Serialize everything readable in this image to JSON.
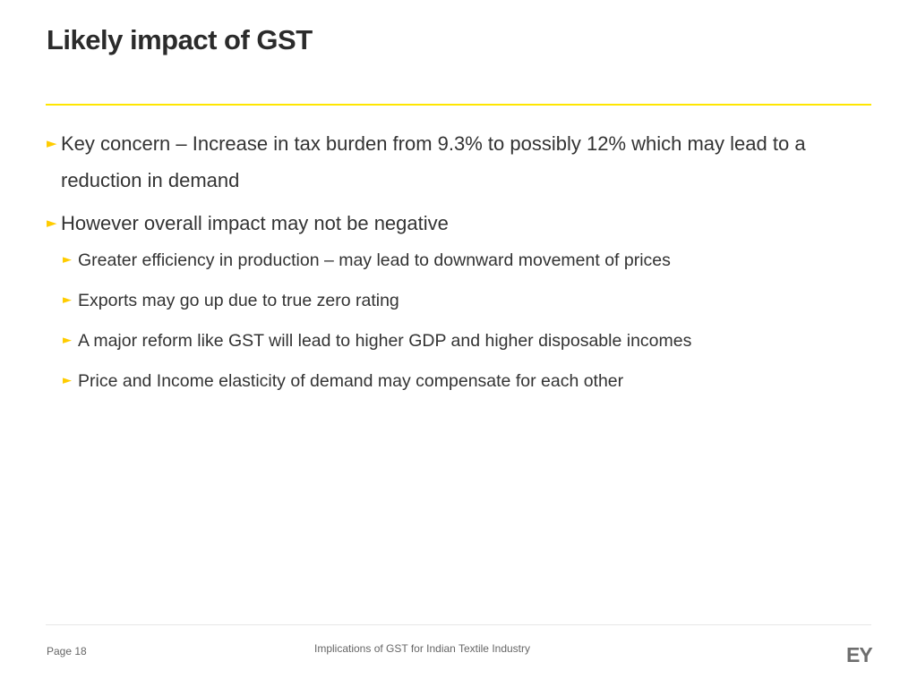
{
  "slide": {
    "title": "Likely impact of GST",
    "bullets": [
      {
        "level": 1,
        "marker": "►",
        "text": "Key concern – Increase in tax burden from 9.3% to possibly 12% which may lead to a reduction in demand"
      },
      {
        "level": 1,
        "marker": "►",
        "text": "However overall impact may not be negative"
      },
      {
        "level": 2,
        "marker": "►",
        "text": "Greater efficiency in production – may lead to downward movement of prices"
      },
      {
        "level": 2,
        "marker": "►",
        "text": "Exports may go up due to true zero rating"
      },
      {
        "level": 2,
        "marker": "►",
        "text": "A major reform like GST will lead to higher GDP and higher disposable incomes"
      },
      {
        "level": 2,
        "marker": "►",
        "text": "Price and Income elasticity of demand may compensate for each other"
      }
    ]
  },
  "footer": {
    "page_label": "Page 18",
    "title": "Implications of GST for Indian Textile Industry",
    "logo": "EY"
  },
  "colors": {
    "accent_yellow": "#ffe600",
    "bullet_marker": "#ffcc00",
    "text": "#333333"
  }
}
